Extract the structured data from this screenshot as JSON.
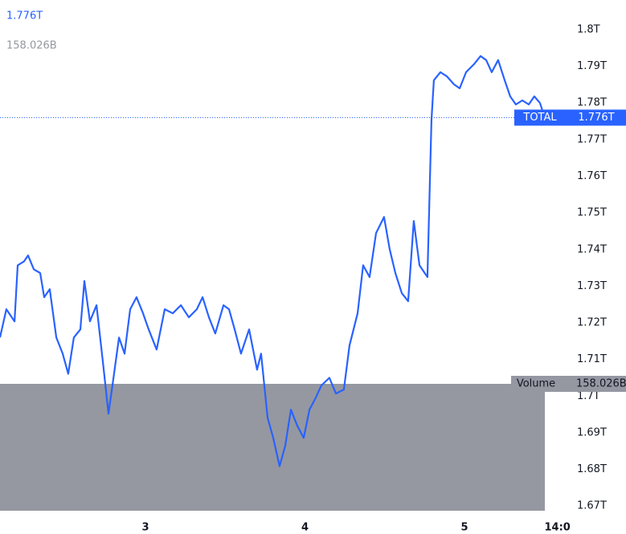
{
  "chart_data": {
    "type": "line",
    "series": [
      {
        "name": "TOTAL",
        "color": "#2962ff",
        "x": [
          2.088,
          2.128,
          2.179,
          2.199,
          2.239,
          2.264,
          2.3,
          2.34,
          2.365,
          2.4,
          2.441,
          2.481,
          2.516,
          2.551,
          2.592,
          2.617,
          2.652,
          2.693,
          2.733,
          2.768,
          2.793,
          2.834,
          2.869,
          2.904,
          2.944,
          2.985,
          3.02,
          3.07,
          3.121,
          3.171,
          3.222,
          3.272,
          3.322,
          3.358,
          3.398,
          3.438,
          3.489,
          3.524,
          3.559,
          3.599,
          3.65,
          3.7,
          3.725,
          3.766,
          3.801,
          3.841,
          3.876,
          3.912,
          3.952,
          3.992,
          4.028,
          4.068,
          4.103,
          4.153,
          4.194,
          4.244,
          4.279,
          4.33,
          4.365,
          4.405,
          4.446,
          4.496,
          4.531,
          4.567,
          4.607,
          4.647,
          4.682,
          4.718,
          4.768,
          4.793,
          4.808,
          4.849,
          4.889,
          4.934,
          4.97,
          5.01,
          5.06,
          5.101,
          5.136,
          5.171,
          5.211,
          5.252,
          5.287,
          5.322,
          5.363,
          5.403,
          5.438,
          5.473,
          5.504
        ],
        "values": [
          1.716,
          1.7237,
          1.7204,
          1.7357,
          1.7368,
          1.7384,
          1.7346,
          1.7336,
          1.727,
          1.7292,
          1.716,
          1.7116,
          1.7061,
          1.716,
          1.7182,
          1.7314,
          1.7204,
          1.7248,
          1.7094,
          1.6952,
          1.7029,
          1.716,
          1.7116,
          1.7237,
          1.727,
          1.7226,
          1.7182,
          1.7127,
          1.7237,
          1.7226,
          1.7248,
          1.7215,
          1.7237,
          1.727,
          1.7215,
          1.7171,
          1.7248,
          1.7237,
          1.7182,
          1.7116,
          1.7182,
          1.7072,
          1.7116,
          1.6941,
          1.6886,
          1.6809,
          1.6864,
          1.6963,
          1.6919,
          1.6886,
          1.6963,
          1.6996,
          1.7029,
          1.705,
          1.7007,
          1.7018,
          1.7138,
          1.7226,
          1.7357,
          1.7325,
          1.7445,
          1.7489,
          1.7401,
          1.7336,
          1.7281,
          1.7259,
          1.7478,
          1.7357,
          1.7325,
          1.7752,
          1.7862,
          1.7884,
          1.7873,
          1.7851,
          1.784,
          1.7884,
          1.7906,
          1.7928,
          1.7917,
          1.7884,
          1.7917,
          1.7862,
          1.7818,
          1.7796,
          1.7807,
          1.7796,
          1.7818,
          1.78,
          1.776
        ]
      }
    ],
    "price_label": "1.776T",
    "volume": {
      "name": "Volume",
      "color": "#9598a1",
      "values": [
        158.026
      ],
      "value_labels": [
        "158.026B"
      ]
    },
    "xlim": [
      2.088,
      5.64
    ],
    "xticks": [
      3,
      4,
      5,
      {
        "value": 5.583,
        "label": "14:0"
      }
    ],
    "ylim": [
      1.6661,
      1.8081
    ],
    "yticks": [
      {
        "value": 1.8,
        "label": "1.8T"
      },
      {
        "value": 1.79,
        "label": "1.79T"
      },
      {
        "value": 1.78,
        "label": "1.78T"
      },
      {
        "value": 1.77,
        "label": "1.77T"
      },
      {
        "value": 1.76,
        "label": "1.76T"
      },
      {
        "value": 1.75,
        "label": "1.75T"
      },
      {
        "value": 1.74,
        "label": "1.74T"
      },
      {
        "value": 1.73,
        "label": "1.73T"
      },
      {
        "value": 1.72,
        "label": "1.72T"
      },
      {
        "value": 1.71,
        "label": "1.71T"
      },
      {
        "value": 1.7,
        "label": "1.7T"
      },
      {
        "value": 1.69,
        "label": "1.69T"
      },
      {
        "value": 1.68,
        "label": "1.68T"
      },
      {
        "value": 1.67,
        "label": "1.67T"
      }
    ]
  }
}
